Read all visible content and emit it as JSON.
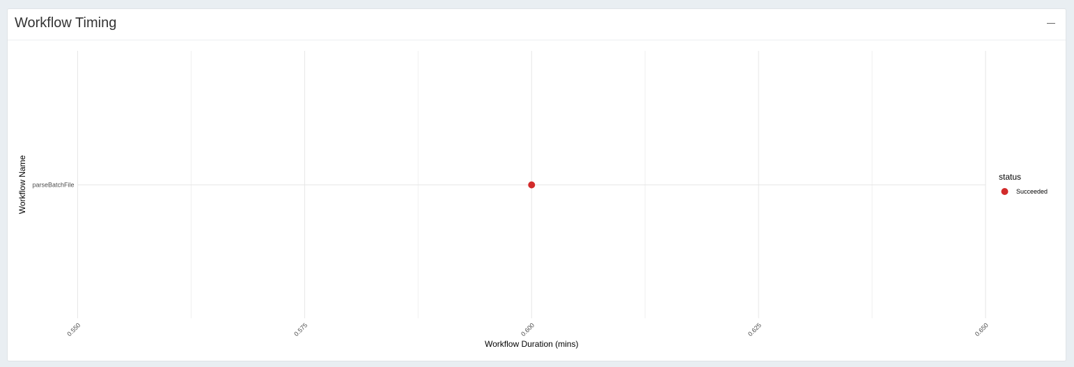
{
  "panel": {
    "title": "Workflow Timing",
    "collapse_icon": "minus-icon"
  },
  "chart_data": {
    "type": "scatter",
    "xlabel": "Workflow Duration (mins)",
    "ylabel": "Workflow Name",
    "xlim": [
      0.55,
      0.65
    ],
    "xticks": [
      0.55,
      0.575,
      0.6,
      0.625,
      0.65
    ],
    "xtick_labels": [
      "0.550",
      "0.575",
      "0.600",
      "0.625",
      "0.650"
    ],
    "categories": [
      "parseBatchFile"
    ],
    "grid": true,
    "legend": {
      "title": "status",
      "placement": "right",
      "entries": [
        {
          "name": "Succeeded",
          "color": "#d22b2b"
        }
      ]
    },
    "series": [
      {
        "name": "Succeeded",
        "color": "#d22b2b",
        "points": [
          {
            "x": 0.6,
            "y": "parseBatchFile"
          }
        ]
      }
    ]
  }
}
